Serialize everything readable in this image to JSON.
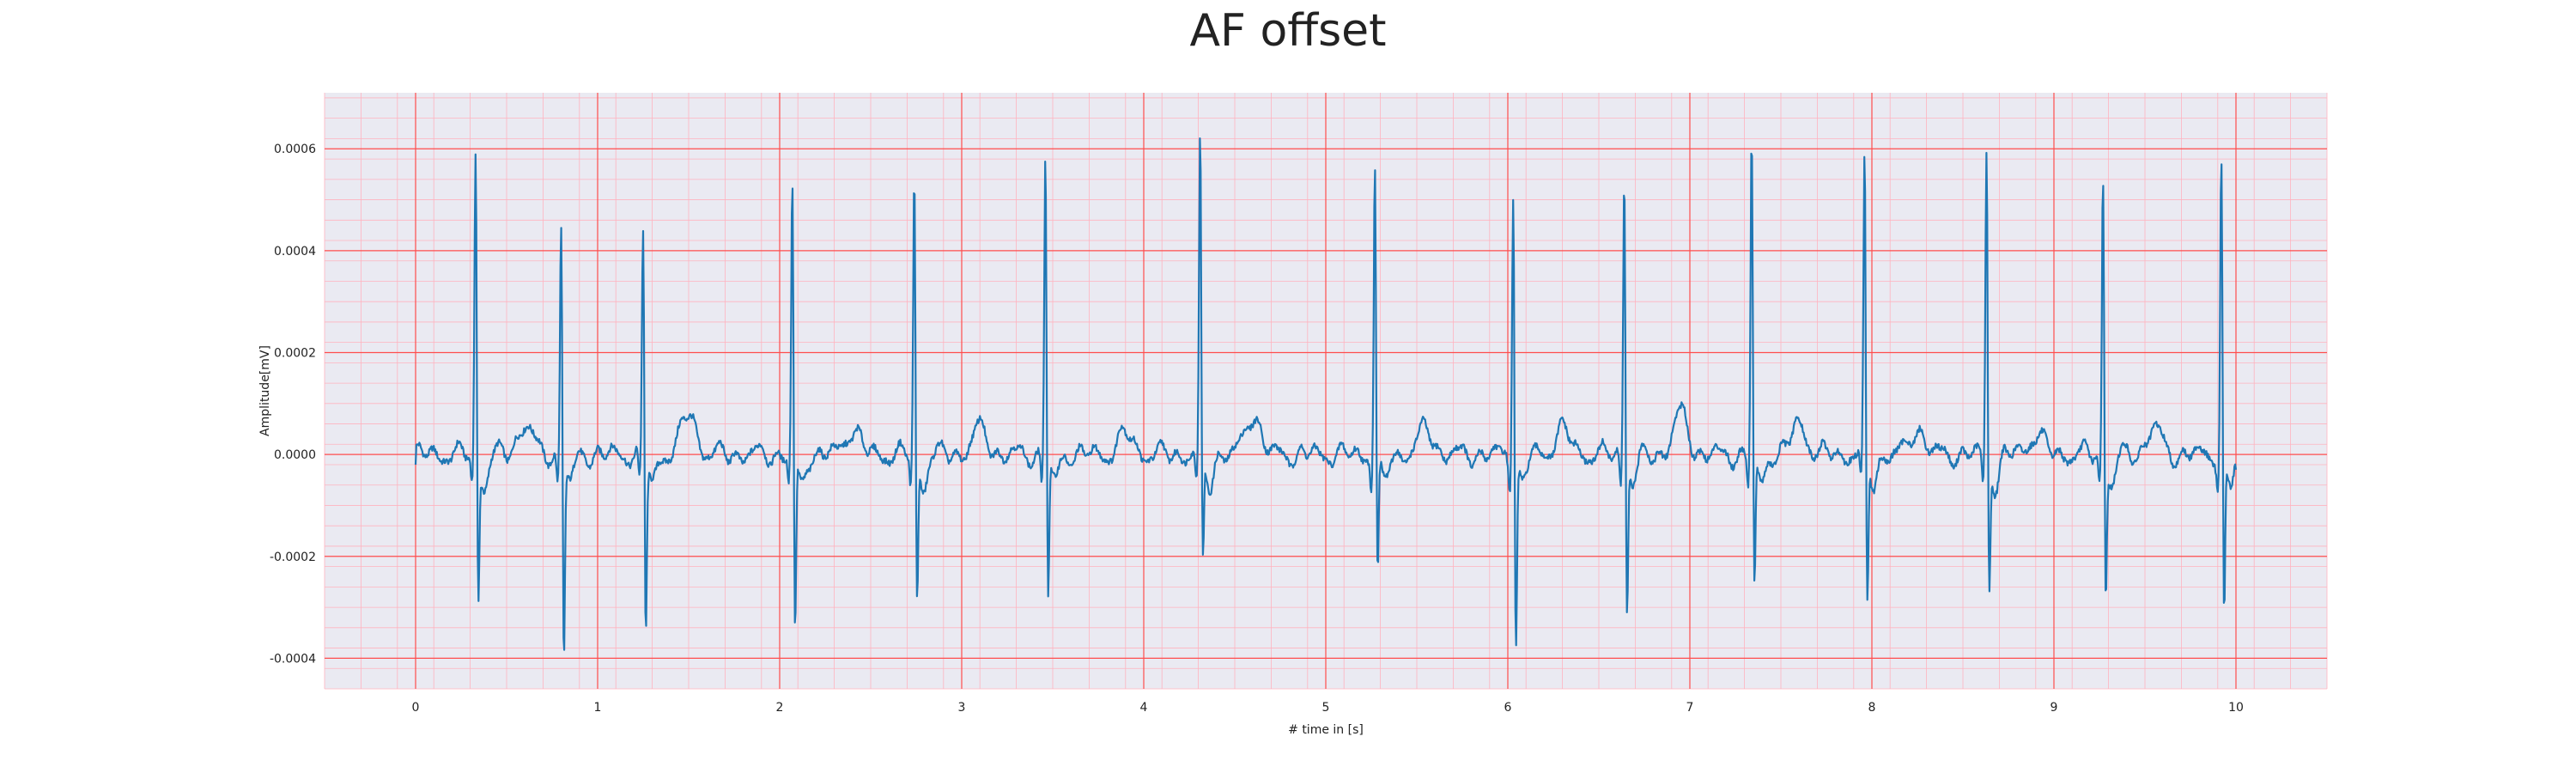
{
  "chart_data": {
    "type": "line",
    "title": "AF offset",
    "xlabel": "# time in [s]",
    "ylabel": "Amplitude[mV]",
    "xlim": [
      -0.5,
      10.5
    ],
    "ylim": [
      -0.00046,
      0.00071
    ],
    "xticks": [
      0,
      1,
      2,
      3,
      4,
      5,
      6,
      7,
      8,
      9,
      10
    ],
    "xtick_labels": [
      "0",
      "1",
      "2",
      "3",
      "4",
      "5",
      "6",
      "7",
      "8",
      "9",
      "10"
    ],
    "yticks": [
      -0.0004,
      -0.0002,
      0.0,
      0.0002,
      0.0004,
      0.0006
    ],
    "ytick_labels": [
      "-0.0004",
      "-0.0002",
      "0.0000",
      "0.0002",
      "0.0004",
      "0.0006"
    ],
    "grid": true,
    "minor_grid": true,
    "legend": "none",
    "colors": {
      "line": "#1f77b4",
      "plot_background": "#eaeaf2",
      "major_grid": "#ff4d4d",
      "minor_grid": "#ffb3bf",
      "figure_background": "#ffffff"
    },
    "series": [
      {
        "r_peaks": [
          {
            "t": 0.33,
            "peak": 0.00061,
            "trough": -0.0003
          },
          {
            "t": 0.8,
            "peak": 0.00048,
            "trough": -0.00041
          },
          {
            "t": 1.25,
            "peak": 0.00046,
            "trough": -0.00036
          },
          {
            "t": 2.07,
            "peak": 0.00055,
            "trough": -0.00038
          },
          {
            "t": 2.74,
            "peak": 0.00056,
            "trough": -0.00031
          },
          {
            "t": 3.46,
            "peak": 0.00062,
            "trough": -0.00029
          },
          {
            "t": 4.31,
            "peak": 0.00063,
            "trough": -0.00024
          },
          {
            "t": 5.27,
            "peak": 0.00059,
            "trough": -0.00025
          },
          {
            "t": 6.03,
            "peak": 0.00055,
            "trough": -0.00039
          },
          {
            "t": 6.64,
            "peak": 0.00058,
            "trough": -0.00032
          },
          {
            "t": 7.34,
            "peak": 0.00065,
            "trough": -0.00029
          },
          {
            "t": 7.96,
            "peak": 0.00059,
            "trough": -0.00031
          },
          {
            "t": 8.63,
            "peak": 0.00062,
            "trough": -0.00028
          },
          {
            "t": 9.27,
            "peak": 0.00057,
            "trough": -0.00029
          },
          {
            "t": 9.92,
            "peak": 0.0006,
            "trough": -0.00035
          }
        ],
        "t_waves": [
          {
            "t": 0.6,
            "amp": 6e-05
          },
          {
            "t": 1.5,
            "amp": 8e-05
          },
          {
            "t": 2.4,
            "amp": 5e-05
          },
          {
            "t": 3.1,
            "amp": 5e-05
          },
          {
            "t": 3.9,
            "amp": 4e-05
          },
          {
            "t": 4.6,
            "amp": 8e-05
          },
          {
            "t": 5.55,
            "amp": 5e-05
          },
          {
            "t": 6.3,
            "amp": 5e-05
          },
          {
            "t": 6.95,
            "amp": 8e-05
          },
          {
            "t": 7.6,
            "amp": 6e-05
          },
          {
            "t": 8.25,
            "amp": 5e-05
          },
          {
            "t": 8.9,
            "amp": 4e-05
          },
          {
            "t": 9.55,
            "amp": 5e-05
          }
        ],
        "start_value": -2e-05,
        "end_value": -3e-05,
        "t_start": 0,
        "t_end": 10
      }
    ]
  }
}
